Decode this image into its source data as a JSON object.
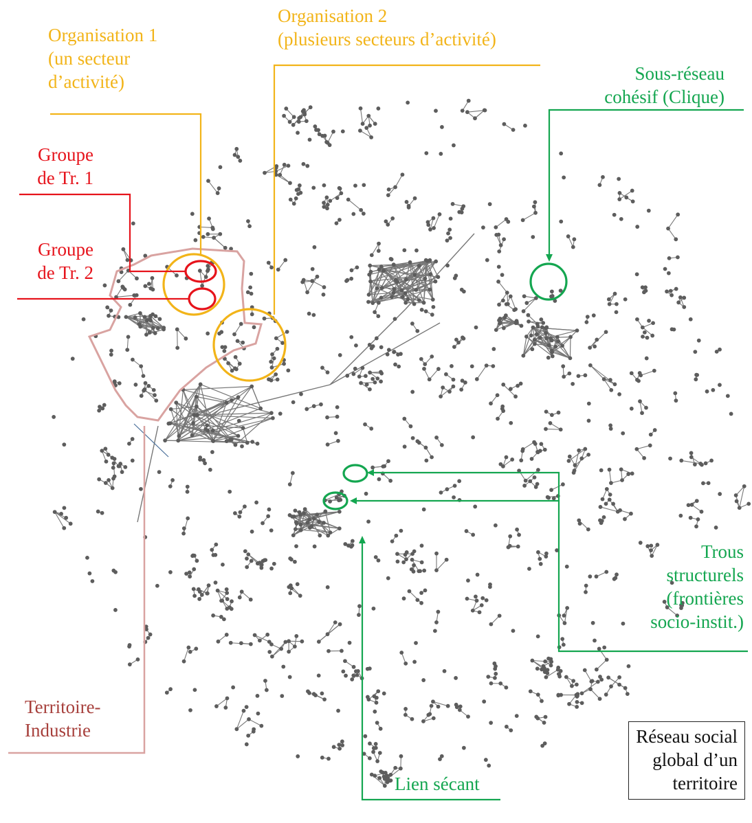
{
  "labels": {
    "org1": [
      "Organisation 1",
      "(un secteur",
      "d’activité)"
    ],
    "org2": [
      "Organisation 2",
      "(plusieurs secteurs d’activité)"
    ],
    "subnetwork": [
      "Sous-réseau",
      "cohésif (Clique)"
    ],
    "group1": [
      "Groupe",
      "de Tr. 1"
    ],
    "group2": [
      "Groupe",
      "de Tr. 2"
    ],
    "structural_holes": [
      "Trous",
      "structurels",
      "(frontières",
      "socio-instit.)"
    ],
    "territory": [
      "Territoire-",
      "Industrie"
    ],
    "bridge_link": "Lien sécant",
    "caption": [
      "Réseau social",
      "global d’un",
      "territoire"
    ]
  },
  "colors": {
    "node": "#5d5d5d",
    "edge": "#777777",
    "organisation": "#f2b419",
    "group": "#e6131b",
    "network_feature": "#14a650",
    "territory_outline": "#d9a3a1",
    "territory_text": "#a7403c"
  }
}
